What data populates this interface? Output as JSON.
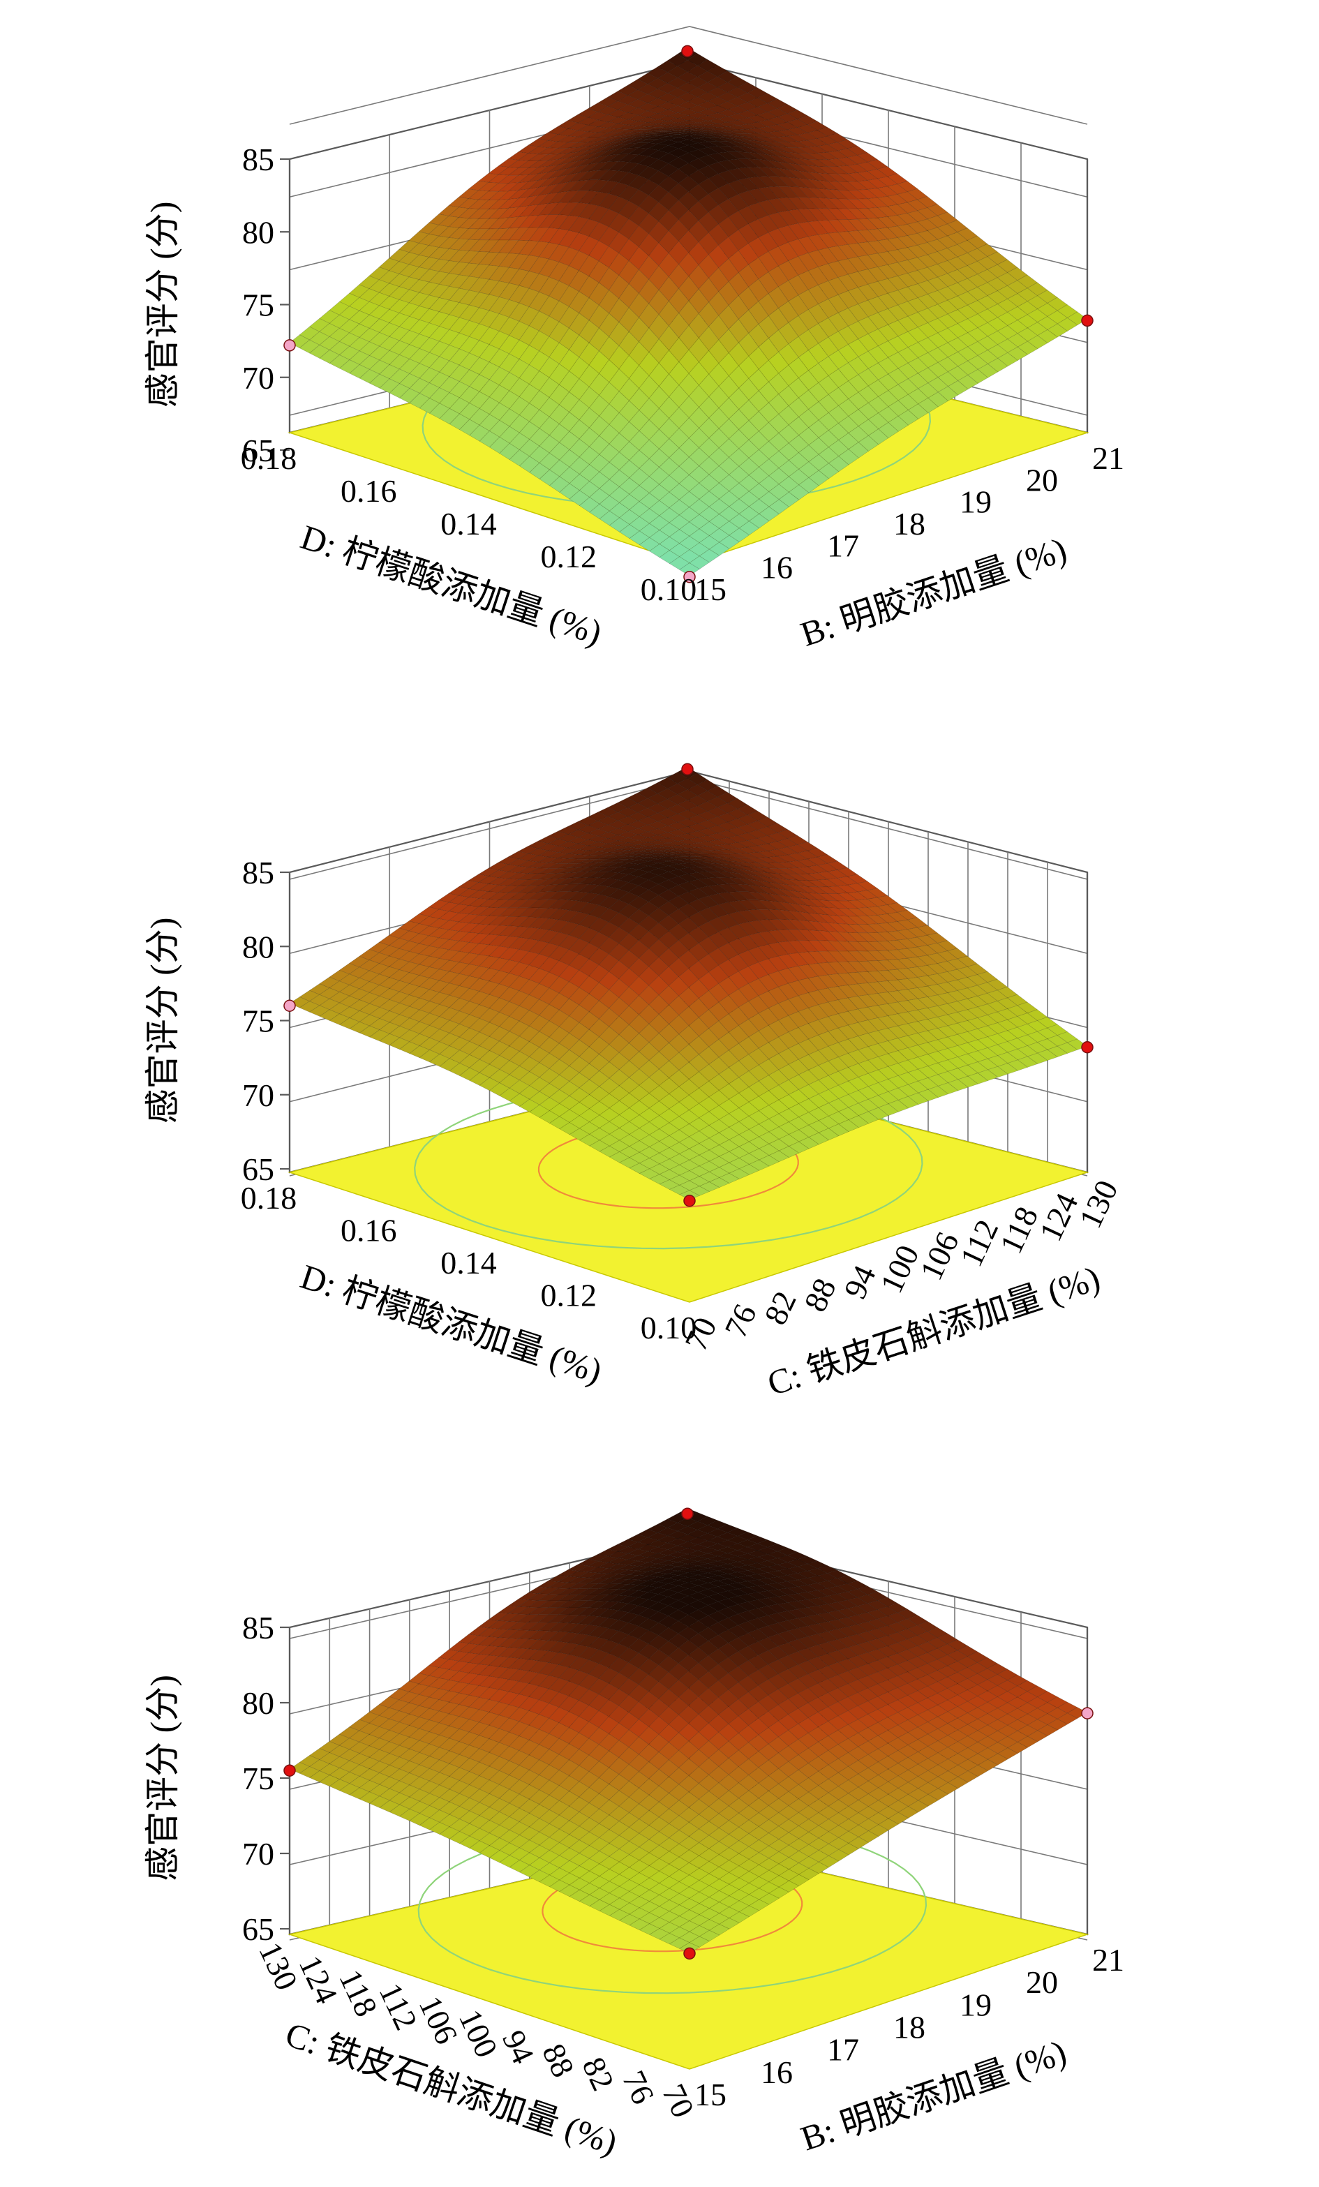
{
  "chart_data": [
    {
      "type": "surface",
      "zlabel": "感官评分 (分)",
      "zticks": [
        "85",
        "80",
        "75",
        "70",
        "65"
      ],
      "zlim": [
        65,
        85
      ],
      "left_axis": {
        "label": "D: 柠檬酸添加量 (%)",
        "ticks": [
          "0.18",
          "0.16",
          "0.14",
          "0.12",
          "0.10"
        ],
        "range": [
          0.1,
          0.18
        ]
      },
      "right_axis": {
        "label": "B: 明胶添加量 (%)",
        "ticks": [
          "15",
          "16",
          "17",
          "18",
          "19",
          "20",
          "21"
        ],
        "range": [
          15,
          21
        ]
      },
      "corner_values": {
        "back": 83.4,
        "left": 72.2,
        "right": 73.9,
        "front": 65.3
      },
      "peak": {
        "u": 0.55,
        "v": 0.52,
        "value": 83.6
      },
      "design_points": [
        {
          "corner": "back",
          "value": 83.4,
          "color": "#e11010"
        },
        {
          "corner": "left",
          "value": 72.2,
          "color": "#f4a6c8"
        },
        {
          "corner": "right",
          "value": 73.9,
          "color": "#e11010"
        },
        {
          "corner": "front",
          "value": 65.3,
          "color": "#f4a6c8"
        }
      ]
    },
    {
      "type": "surface",
      "zlabel": "感官评分 (分)",
      "zticks": [
        "85",
        "80",
        "75",
        "70",
        "65"
      ],
      "zlim": [
        65,
        85
      ],
      "left_axis": {
        "label": "D: 柠檬酸添加量 (%)",
        "ticks": [
          "0.18",
          "0.16",
          "0.14",
          "0.12",
          "0.10"
        ],
        "range": [
          0.1,
          0.18
        ]
      },
      "right_axis": {
        "label": "C: 铁皮石斛添加量 (%)",
        "ticks": [
          "70",
          "76",
          "82",
          "88",
          "94",
          "100",
          "106",
          "112",
          "118",
          "124",
          "130"
        ],
        "range": [
          70,
          130
        ]
      },
      "corner_values": {
        "back": 83.2,
        "left": 76.0,
        "right": 73.2,
        "front": 71.6
      },
      "peak": {
        "u": 0.55,
        "v": 0.5,
        "value": 83.4
      },
      "design_points": [
        {
          "corner": "back",
          "value": 83.2,
          "color": "#e11010"
        },
        {
          "corner": "left",
          "value": 76.0,
          "color": "#f4a6c8"
        },
        {
          "corner": "right",
          "value": 73.2,
          "color": "#e11010"
        },
        {
          "corner": "front",
          "value": 71.6,
          "color": "#e11010"
        }
      ]
    },
    {
      "type": "surface",
      "zlabel": "感官评分 (分)",
      "zticks": [
        "85",
        "80",
        "75",
        "70",
        "65"
      ],
      "zlim": [
        65,
        85
      ],
      "left_axis": {
        "label": "C: 铁皮石斛添加量 (%)",
        "ticks": [
          "130",
          "124",
          "118",
          "112",
          "106",
          "100",
          "94",
          "88",
          "82",
          "76",
          "70"
        ],
        "range": [
          70,
          130
        ]
      },
      "right_axis": {
        "label": "B: 明胶添加量 (%)",
        "ticks": [
          "15",
          "16",
          "17",
          "18",
          "19",
          "20",
          "21"
        ],
        "range": [
          15,
          21
        ]
      },
      "corner_values": {
        "back": 83.6,
        "left": 75.5,
        "right": 79.3,
        "front": 72.3
      },
      "peak": {
        "u": 0.62,
        "v": 0.58,
        "value": 84.0
      },
      "design_points": [
        {
          "corner": "back",
          "value": 83.6,
          "color": "#e11010"
        },
        {
          "corner": "left",
          "value": 75.5,
          "color": "#e11010"
        },
        {
          "corner": "right",
          "value": 79.3,
          "color": "#f4a6c8"
        },
        {
          "corner": "front",
          "value": 72.3,
          "color": "#e11010"
        }
      ]
    }
  ],
  "colors": {
    "floor": "#f2f230",
    "contour_inner": "#f08a3a",
    "contour_outer": "#8fd47a",
    "surface_low": "#7fe0a8",
    "surface_mid": "#b8d020",
    "surface_high": "#b84010",
    "surface_top": "#1a0a04"
  }
}
